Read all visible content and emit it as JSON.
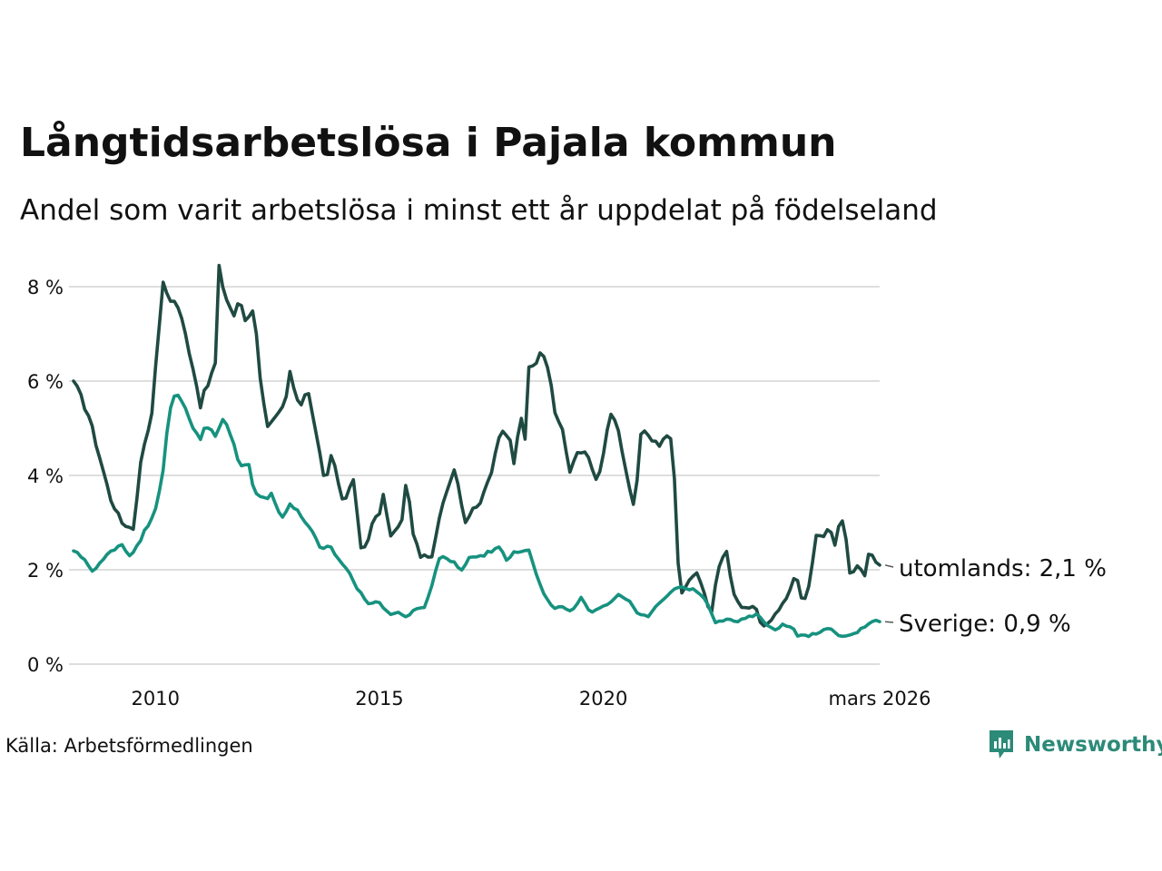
{
  "title": "Långtidsarbetslösa i Pajala kommun",
  "subtitle": "Andel som varit arbetslösa i minst ett år uppdelat på födelseland",
  "source": "Källa: Arbetsförmedlingen",
  "brand": "Newsworthy",
  "chart_data": {
    "type": "line",
    "x_start": 2008.17,
    "x_end": 2026.17,
    "ylim": [
      0,
      8.5
    ],
    "yticks": [
      0,
      2,
      4,
      6,
      8
    ],
    "ytick_labels": [
      "0 %",
      "2 %",
      "4 %",
      "6 %",
      "8 %"
    ],
    "xticks": [
      2010,
      2015,
      2020,
      2026.17
    ],
    "xtick_labels": [
      "2010",
      "2015",
      "2020",
      "mars 2026"
    ],
    "grid": true,
    "series": [
      {
        "name": "utomlands",
        "end_label": "utomlands: 2,1 %",
        "color": "#1f4a42",
        "anchors": [
          [
            2008.17,
            6.0
          ],
          [
            2008.5,
            5.3
          ],
          [
            2008.75,
            4.4
          ],
          [
            2009.0,
            3.5
          ],
          [
            2009.25,
            3.0
          ],
          [
            2009.5,
            2.85
          ],
          [
            2009.7,
            4.5
          ],
          [
            2009.9,
            5.2
          ],
          [
            2010.0,
            6.2
          ],
          [
            2010.15,
            8.05
          ],
          [
            2010.3,
            7.8
          ],
          [
            2010.5,
            7.6
          ],
          [
            2010.8,
            6.5
          ],
          [
            2011.0,
            5.5
          ],
          [
            2011.2,
            6.0
          ],
          [
            2011.35,
            6.4
          ],
          [
            2011.42,
            8.35
          ],
          [
            2011.6,
            7.7
          ],
          [
            2011.75,
            7.4
          ],
          [
            2011.9,
            7.7
          ],
          [
            2012.0,
            7.3
          ],
          [
            2012.2,
            7.6
          ],
          [
            2012.3,
            6.4
          ],
          [
            2012.5,
            5.0
          ],
          [
            2012.7,
            5.2
          ],
          [
            2012.9,
            5.5
          ],
          [
            2013.0,
            6.2
          ],
          [
            2013.2,
            5.4
          ],
          [
            2013.4,
            5.9
          ],
          [
            2013.6,
            4.8
          ],
          [
            2013.8,
            3.8
          ],
          [
            2013.95,
            4.5
          ],
          [
            2014.15,
            3.5
          ],
          [
            2014.3,
            3.6
          ],
          [
            2014.45,
            4.0
          ],
          [
            2014.55,
            2.45
          ],
          [
            2014.7,
            2.5
          ],
          [
            2014.85,
            3.0
          ],
          [
            2015.0,
            3.2
          ],
          [
            2015.1,
            3.6
          ],
          [
            2015.25,
            2.7
          ],
          [
            2015.5,
            3.0
          ],
          [
            2015.6,
            3.95
          ],
          [
            2015.75,
            2.8
          ],
          [
            2015.9,
            2.3
          ],
          [
            2016.2,
            2.25
          ],
          [
            2016.3,
            3.0
          ],
          [
            2016.5,
            3.7
          ],
          [
            2016.7,
            4.2
          ],
          [
            2016.9,
            3.0
          ],
          [
            2017.1,
            3.3
          ],
          [
            2017.3,
            3.5
          ],
          [
            2017.5,
            4.1
          ],
          [
            2017.7,
            5.0
          ],
          [
            2017.9,
            4.8
          ],
          [
            2018.0,
            4.2
          ],
          [
            2018.15,
            5.3
          ],
          [
            2018.25,
            4.7
          ],
          [
            2018.3,
            6.2
          ],
          [
            2018.5,
            6.35
          ],
          [
            2018.6,
            6.7
          ],
          [
            2018.75,
            6.4
          ],
          [
            2018.9,
            5.45
          ],
          [
            2019.1,
            5.0
          ],
          [
            2019.25,
            4.0
          ],
          [
            2019.4,
            4.5
          ],
          [
            2019.6,
            4.5
          ],
          [
            2019.85,
            3.9
          ],
          [
            2020.0,
            4.4
          ],
          [
            2020.15,
            5.35
          ],
          [
            2020.35,
            4.9
          ],
          [
            2020.55,
            3.8
          ],
          [
            2020.7,
            3.3
          ],
          [
            2020.85,
            5.0
          ],
          [
            2021.0,
            4.8
          ],
          [
            2021.25,
            4.6
          ],
          [
            2021.45,
            4.9
          ],
          [
            2021.55,
            4.8
          ],
          [
            2021.65,
            2.3
          ],
          [
            2021.75,
            1.5
          ],
          [
            2021.9,
            1.75
          ],
          [
            2022.1,
            1.95
          ],
          [
            2022.25,
            1.5
          ],
          [
            2022.4,
            1.0
          ],
          [
            2022.55,
            2.0
          ],
          [
            2022.75,
            2.4
          ],
          [
            2022.9,
            1.5
          ],
          [
            2023.1,
            1.2
          ],
          [
            2023.4,
            1.2
          ],
          [
            2023.55,
            0.75
          ],
          [
            2023.75,
            0.95
          ],
          [
            2023.95,
            1.2
          ],
          [
            2024.15,
            1.5
          ],
          [
            2024.3,
            1.95
          ],
          [
            2024.45,
            1.25
          ],
          [
            2024.6,
            1.7
          ],
          [
            2024.75,
            2.7
          ],
          [
            2024.95,
            2.75
          ],
          [
            2025.05,
            3.0
          ],
          [
            2025.15,
            2.45
          ],
          [
            2025.3,
            3.15
          ],
          [
            2025.4,
            2.85
          ],
          [
            2025.5,
            1.9
          ],
          [
            2025.7,
            2.1
          ],
          [
            2025.85,
            1.85
          ],
          [
            2025.95,
            2.5
          ],
          [
            2026.05,
            2.2
          ],
          [
            2026.17,
            2.1
          ]
        ]
      },
      {
        "name": "Sverige",
        "end_label": "Sverige: 0,9 %",
        "color": "#16927f",
        "anchors": [
          [
            2008.17,
            2.4
          ],
          [
            2008.45,
            2.2
          ],
          [
            2008.6,
            1.95
          ],
          [
            2009.0,
            2.4
          ],
          [
            2009.25,
            2.55
          ],
          [
            2009.4,
            2.3
          ],
          [
            2009.6,
            2.5
          ],
          [
            2009.8,
            2.9
          ],
          [
            2010.0,
            3.3
          ],
          [
            2010.15,
            4.0
          ],
          [
            2010.3,
            5.25
          ],
          [
            2010.45,
            5.75
          ],
          [
            2010.65,
            5.5
          ],
          [
            2010.85,
            5.0
          ],
          [
            2011.0,
            4.8
          ],
          [
            2011.15,
            5.05
          ],
          [
            2011.35,
            4.8
          ],
          [
            2011.5,
            5.2
          ],
          [
            2011.7,
            4.8
          ],
          [
            2011.9,
            4.2
          ],
          [
            2012.1,
            4.2
          ],
          [
            2012.2,
            3.7
          ],
          [
            2012.45,
            3.5
          ],
          [
            2012.6,
            3.6
          ],
          [
            2012.8,
            3.1
          ],
          [
            2013.0,
            3.4
          ],
          [
            2013.2,
            3.2
          ],
          [
            2013.45,
            2.9
          ],
          [
            2013.7,
            2.4
          ],
          [
            2013.9,
            2.5
          ],
          [
            2014.1,
            2.2
          ],
          [
            2014.3,
            2.0
          ],
          [
            2014.5,
            1.6
          ],
          [
            2014.75,
            1.3
          ],
          [
            2015.0,
            1.3
          ],
          [
            2015.25,
            1.05
          ],
          [
            2015.45,
            1.1
          ],
          [
            2015.6,
            1.0
          ],
          [
            2015.8,
            1.15
          ],
          [
            2016.0,
            1.2
          ],
          [
            2016.15,
            1.6
          ],
          [
            2016.35,
            2.3
          ],
          [
            2016.6,
            2.2
          ],
          [
            2016.85,
            2.0
          ],
          [
            2017.05,
            2.3
          ],
          [
            2017.3,
            2.3
          ],
          [
            2017.5,
            2.4
          ],
          [
            2017.7,
            2.5
          ],
          [
            2017.85,
            2.2
          ],
          [
            2018.0,
            2.4
          ],
          [
            2018.15,
            2.4
          ],
          [
            2018.35,
            2.4
          ],
          [
            2018.5,
            1.9
          ],
          [
            2018.7,
            1.4
          ],
          [
            2018.9,
            1.2
          ],
          [
            2019.1,
            1.2
          ],
          [
            2019.3,
            1.1
          ],
          [
            2019.5,
            1.4
          ],
          [
            2019.7,
            1.1
          ],
          [
            2019.9,
            1.2
          ],
          [
            2020.15,
            1.3
          ],
          [
            2020.35,
            1.5
          ],
          [
            2020.6,
            1.3
          ],
          [
            2020.8,
            1.05
          ],
          [
            2021.0,
            1.0
          ],
          [
            2021.25,
            1.3
          ],
          [
            2021.45,
            1.45
          ],
          [
            2021.65,
            1.65
          ],
          [
            2021.9,
            1.6
          ],
          [
            2022.1,
            1.55
          ],
          [
            2022.3,
            1.35
          ],
          [
            2022.5,
            0.9
          ],
          [
            2022.75,
            0.95
          ],
          [
            2023.0,
            0.9
          ],
          [
            2023.25,
            1.0
          ],
          [
            2023.45,
            1.05
          ],
          [
            2023.65,
            0.85
          ],
          [
            2023.85,
            0.7
          ],
          [
            2024.0,
            0.85
          ],
          [
            2024.2,
            0.8
          ],
          [
            2024.35,
            0.6
          ],
          [
            2024.6,
            0.6
          ],
          [
            2024.85,
            0.7
          ],
          [
            2025.05,
            0.75
          ],
          [
            2025.25,
            0.6
          ],
          [
            2025.5,
            0.6
          ],
          [
            2025.7,
            0.7
          ],
          [
            2025.9,
            0.85
          ],
          [
            2026.05,
            0.95
          ],
          [
            2026.17,
            0.9
          ]
        ]
      }
    ]
  }
}
